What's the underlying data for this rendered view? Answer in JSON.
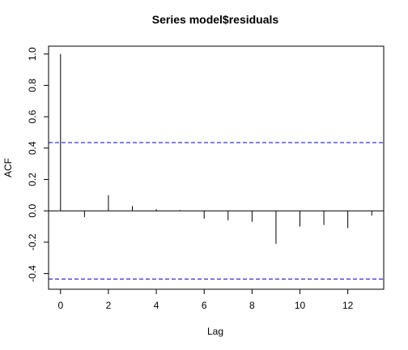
{
  "chart_data": {
    "type": "bar",
    "title": "Series  model$residuals",
    "xlabel": "Lag",
    "ylabel": "ACF",
    "x": [
      0,
      1,
      2,
      3,
      4,
      5,
      6,
      7,
      8,
      9,
      10,
      11,
      12,
      13
    ],
    "values": [
      1.0,
      -0.04,
      0.1,
      0.03,
      0.01,
      0.005,
      -0.05,
      -0.06,
      -0.07,
      -0.21,
      -0.1,
      -0.09,
      -0.11,
      -0.03
    ],
    "xlim": [
      -0.5,
      13.5
    ],
    "ylim": [
      -0.5,
      1.05
    ],
    "xticks": [
      0,
      2,
      4,
      6,
      8,
      10,
      12
    ],
    "yticks": [
      -0.4,
      -0.2,
      0.0,
      0.2,
      0.4,
      0.6,
      0.8,
      1.0
    ],
    "ytick_labels": [
      "-0.4",
      "-0.2",
      "0.0",
      "0.2",
      "0.4",
      "0.6",
      "0.8",
      "1.0"
    ],
    "confidence_bounds": [
      0.435,
      -0.435
    ],
    "confidence_color": "#0000cc",
    "zero_line": true,
    "grid": false
  }
}
